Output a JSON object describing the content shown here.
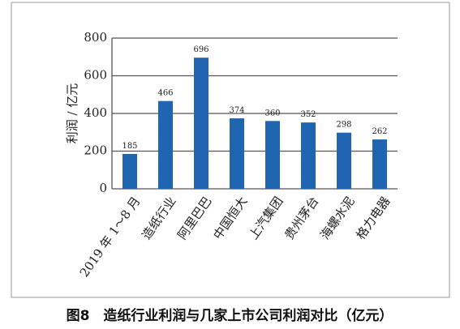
{
  "chart_data": {
    "type": "bar",
    "title": "图8　造纸行业利润与几家上市公司利润对比（亿元）",
    "y_label": "利润 / 亿元",
    "categories": [
      "2019 年 1～8 月",
      "造纸行业",
      "阿里巴巴",
      "中国恒大",
      "上汽集团",
      "贵州茅台",
      "海螺水泥",
      "格力电器"
    ],
    "values": [
      185,
      466,
      696,
      374,
      360,
      352,
      298,
      262
    ],
    "color": "#1f65b2",
    "ylim": [
      0,
      800
    ],
    "yticks": [
      0,
      200,
      400,
      600,
      800
    ],
    "grid": true
  }
}
